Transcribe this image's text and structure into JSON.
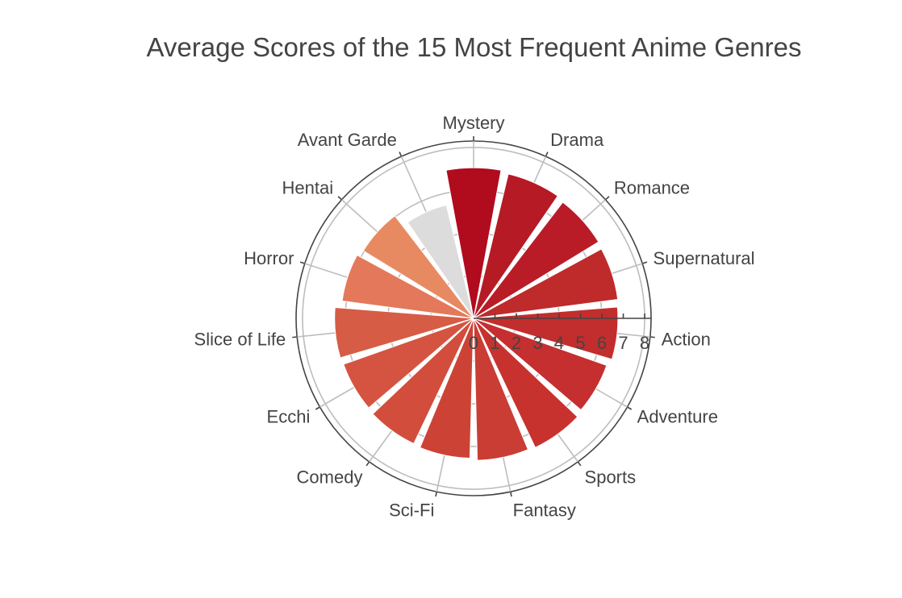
{
  "chart_data": {
    "type": "bar",
    "subtype": "polar-bar",
    "title": "Average Scores of the 15 Most Frequent Anime Genres",
    "categories": [
      "Mystery",
      "Drama",
      "Romance",
      "Supernatural",
      "Action",
      "Adventure",
      "Sports",
      "Fantasy",
      "Sci-Fi",
      "Comedy",
      "Ecchi",
      "Slice of Life",
      "Horror",
      "Hentai",
      "Avant Garde"
    ],
    "values": [
      7.05,
      6.95,
      6.85,
      6.8,
      6.75,
      6.6,
      6.7,
      6.65,
      6.55,
      6.5,
      6.45,
      6.5,
      6.2,
      6.05,
      5.45
    ],
    "colors": [
      "#b10b1e",
      "#b61a25",
      "#b91c27",
      "#bf2a2a",
      "#c22e2d",
      "#c52f2f",
      "#c8322e",
      "#c93d35",
      "#cc4336",
      "#d24d3b",
      "#d55441",
      "#d65c46",
      "#e3795a",
      "#e88a61",
      "#dcdcdc"
    ],
    "radial_ticks": [
      "0",
      "1",
      "2",
      "3",
      "4",
      "5",
      "6",
      "7",
      "8"
    ],
    "radial_range": [
      0,
      8.3
    ]
  }
}
